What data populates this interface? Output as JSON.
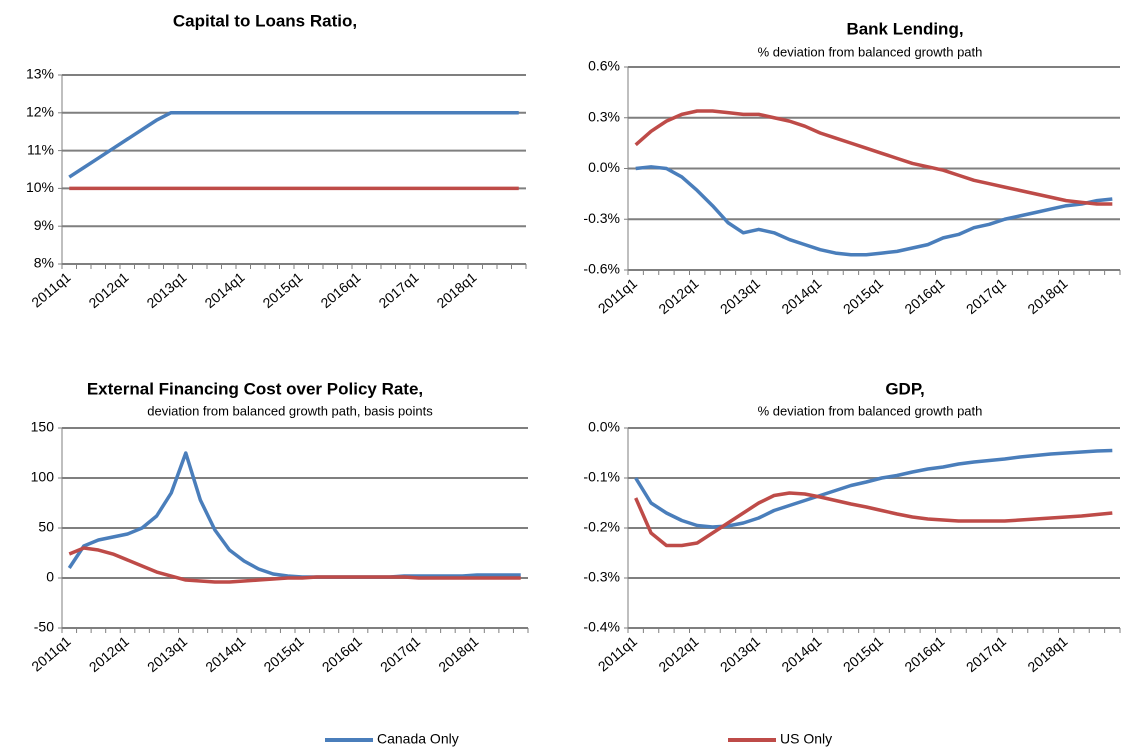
{
  "chart_data": [
    {
      "type": "line",
      "title": "Capital to Loans Ratio,",
      "categories": [
        "2011q1",
        null,
        null,
        null,
        "2012q1",
        null,
        null,
        null,
        "2013q1",
        null,
        null,
        null,
        "2014q1",
        null,
        null,
        null,
        "2015q1",
        null,
        null,
        null,
        "2016q1",
        null,
        null,
        null,
        "2017q1",
        null,
        null,
        null,
        "2018q1",
        null,
        null,
        null
      ],
      "series": [
        {
          "name": "Canada Only",
          "color": "#4a7ebb",
          "values": [
            10.3,
            10.55,
            10.8,
            11.05,
            11.3,
            11.55,
            11.8,
            12,
            12,
            12,
            12,
            12,
            12,
            12,
            12,
            12,
            12,
            12,
            12,
            12,
            12,
            12,
            12,
            12,
            12,
            12,
            12,
            12,
            12,
            12,
            12,
            12
          ]
        },
        {
          "name": "US Only",
          "color": "#be4b48",
          "values": [
            10,
            10,
            10,
            10,
            10,
            10,
            10,
            10,
            10,
            10,
            10,
            10,
            10,
            10,
            10,
            10,
            10,
            10,
            10,
            10,
            10,
            10,
            10,
            10,
            10,
            10,
            10,
            10,
            10,
            10,
            10,
            10
          ]
        }
      ],
      "ylim": [
        8,
        13
      ],
      "yticks": [
        {
          "value": 8,
          "label": "8%"
        },
        {
          "value": 9,
          "label": "9%"
        },
        {
          "value": 10,
          "label": "10%"
        },
        {
          "value": 11,
          "label": "11%"
        },
        {
          "value": 12,
          "label": "12%"
        },
        {
          "value": 13,
          "label": "13%"
        }
      ],
      "grid": true
    },
    {
      "type": "line",
      "title": "Bank Lending,",
      "subtitle": "% deviation from balanced growth path",
      "categories": [
        "2011q1",
        null,
        null,
        null,
        "2012q1",
        null,
        null,
        null,
        "2013q1",
        null,
        null,
        null,
        "2014q1",
        null,
        null,
        null,
        "2015q1",
        null,
        null,
        null,
        "2016q1",
        null,
        null,
        null,
        "2017q1",
        null,
        null,
        null,
        "2018q1",
        null,
        null,
        null
      ],
      "series": [
        {
          "color": "#4a7ebb",
          "values": [
            0,
            0.01,
            0,
            -0.05,
            -0.13,
            -0.22,
            -0.32,
            -0.38,
            -0.36,
            -0.38,
            -0.42,
            -0.45,
            -0.48,
            -0.5,
            -0.51,
            -0.51,
            -0.5,
            -0.49,
            -0.47,
            -0.45,
            -0.41,
            -0.39,
            -0.35,
            -0.33,
            -0.3,
            -0.28,
            -0.26,
            -0.24,
            -0.22,
            -0.21,
            -0.19,
            -0.18
          ]
        },
        {
          "color": "#be4b48",
          "values": [
            0.14,
            0.22,
            0.28,
            0.32,
            0.34,
            0.34,
            0.33,
            0.32,
            0.32,
            0.3,
            0.28,
            0.25,
            0.21,
            0.18,
            0.15,
            0.12,
            0.09,
            0.06,
            0.03,
            0.01,
            -0.01,
            -0.04,
            -0.07,
            -0.09,
            -0.11,
            -0.13,
            -0.15,
            -0.17,
            -0.19,
            -0.2,
            -0.21,
            -0.21
          ]
        }
      ],
      "ylim": [
        -0.6,
        0.6
      ],
      "yticks": [
        {
          "value": -0.6,
          "label": "-0.6%"
        },
        {
          "value": -0.3,
          "label": "-0.3%"
        },
        {
          "value": 0,
          "label": "0.0%"
        },
        {
          "value": 0.3,
          "label": "0.3%"
        },
        {
          "value": 0.6,
          "label": "0.6%"
        }
      ],
      "grid": true
    },
    {
      "type": "line",
      "title": "External Financing Cost over Policy Rate,",
      "subtitle": "deviation from balanced growth path, basis points",
      "categories": [
        "2011q1",
        null,
        null,
        null,
        "2012q1",
        null,
        null,
        null,
        "2013q1",
        null,
        null,
        null,
        "2014q1",
        null,
        null,
        null,
        "2015q1",
        null,
        null,
        null,
        "2016q1",
        null,
        null,
        null,
        "2017q1",
        null,
        null,
        null,
        "2018q1",
        null,
        null,
        null
      ],
      "series": [
        {
          "color": "#4a7ebb",
          "values": [
            10,
            32,
            38,
            41,
            44,
            50,
            62,
            85,
            125,
            78,
            48,
            28,
            17,
            9,
            4,
            2,
            1,
            1,
            1,
            1,
            1,
            1,
            1,
            2,
            2,
            2,
            2,
            2,
            3,
            3,
            3,
            3
          ]
        },
        {
          "color": "#be4b48",
          "values": [
            24,
            30,
            28,
            24,
            18,
            12,
            6,
            2,
            -2,
            -3,
            -4,
            -4,
            -3,
            -2,
            -1,
            0,
            0,
            1,
            1,
            1,
            1,
            1,
            1,
            1,
            0,
            0,
            0,
            0,
            0,
            0,
            0,
            0
          ]
        }
      ],
      "ylim": [
        -50,
        150
      ],
      "yticks": [
        -50,
        0,
        50,
        100,
        150
      ],
      "grid": true
    },
    {
      "type": "line",
      "title": "GDP,",
      "subtitle": "% deviation from balanced growth path",
      "categories": [
        "2011q1",
        null,
        null,
        null,
        "2012q1",
        null,
        null,
        null,
        "2013q1",
        null,
        null,
        null,
        "2014q1",
        null,
        null,
        null,
        "2015q1",
        null,
        null,
        null,
        "2016q1",
        null,
        null,
        null,
        "2017q1",
        null,
        null,
        null,
        "2018q1",
        null,
        null,
        null
      ],
      "series": [
        {
          "color": "#4a7ebb",
          "values": [
            -0.1,
            -0.15,
            -0.17,
            -0.185,
            -0.195,
            -0.198,
            -0.196,
            -0.19,
            -0.18,
            -0.165,
            -0.155,
            -0.145,
            -0.135,
            -0.125,
            -0.115,
            -0.108,
            -0.1,
            -0.095,
            -0.088,
            -0.082,
            -0.078,
            -0.072,
            -0.068,
            -0.065,
            -0.062,
            -0.058,
            -0.055,
            -0.052,
            -0.05,
            -0.048,
            -0.046,
            -0.045
          ]
        },
        {
          "color": "#be4b48",
          "values": [
            -0.14,
            -0.21,
            -0.235,
            -0.235,
            -0.23,
            -0.21,
            -0.19,
            -0.17,
            -0.15,
            -0.135,
            -0.13,
            -0.132,
            -0.138,
            -0.145,
            -0.152,
            -0.158,
            -0.165,
            -0.172,
            -0.178,
            -0.182,
            -0.184,
            -0.186,
            -0.186,
            -0.186,
            -0.186,
            -0.184,
            -0.182,
            -0.18,
            -0.178,
            -0.176,
            -0.173,
            -0.17
          ]
        }
      ],
      "ylim": [
        -0.4,
        0
      ],
      "yticks": [
        {
          "value": -0.4,
          "label": "-0.4%"
        },
        {
          "value": -0.3,
          "label": "-0.3%"
        },
        {
          "value": -0.2,
          "label": "-0.2%"
        },
        {
          "value": -0.1,
          "label": "-0.1%"
        },
        {
          "value": 0,
          "label": "0.0%"
        }
      ],
      "grid": true
    }
  ]
}
